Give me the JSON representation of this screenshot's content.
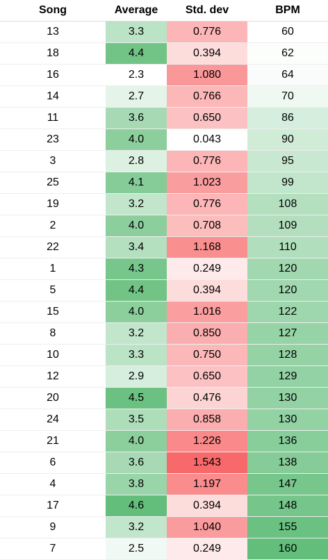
{
  "table": {
    "headers": [
      "Song",
      "Average",
      "Std. dev",
      "BPM"
    ],
    "rows": [
      [
        "13",
        "3.3",
        "0.776",
        "60"
      ],
      [
        "18",
        "4.4",
        "0.394",
        "62"
      ],
      [
        "16",
        "2.3",
        "1.080",
        "64"
      ],
      [
        "14",
        "2.7",
        "0.766",
        "70"
      ],
      [
        "11",
        "3.6",
        "0.650",
        "86"
      ],
      [
        "23",
        "4.0",
        "0.043",
        "90"
      ],
      [
        "3",
        "2.8",
        "0.776",
        "95"
      ],
      [
        "25",
        "4.1",
        "1.023",
        "99"
      ],
      [
        "19",
        "3.2",
        "0.776",
        "108"
      ],
      [
        "2",
        "4.0",
        "0.708",
        "109"
      ],
      [
        "22",
        "3.4",
        "1.168",
        "110"
      ],
      [
        "1",
        "4.3",
        "0.249",
        "120"
      ],
      [
        "5",
        "4.4",
        "0.394",
        "120"
      ],
      [
        "15",
        "4.0",
        "1.016",
        "122"
      ],
      [
        "8",
        "3.2",
        "0.850",
        "127"
      ],
      [
        "10",
        "3.3",
        "0.750",
        "128"
      ],
      [
        "12",
        "2.9",
        "0.650",
        "129"
      ],
      [
        "20",
        "4.5",
        "0.476",
        "130"
      ],
      [
        "24",
        "3.5",
        "0.858",
        "130"
      ],
      [
        "21",
        "4.0",
        "1.226",
        "136"
      ],
      [
        "6",
        "3.6",
        "1.543",
        "138"
      ],
      [
        "4",
        "3.8",
        "1.197",
        "147"
      ],
      [
        "17",
        "4.6",
        "0.394",
        "148"
      ],
      [
        "9",
        "3.2",
        "1.040",
        "155"
      ],
      [
        "7",
        "2.5",
        "0.249",
        "160"
      ]
    ]
  },
  "color_scale": {
    "green": "#63be7b",
    "red": "#f8696b",
    "white": "#ffffff"
  }
}
